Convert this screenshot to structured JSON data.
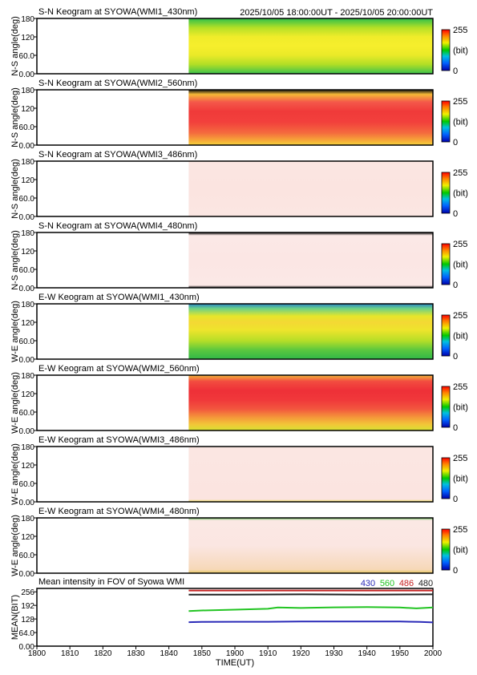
{
  "header": {
    "time_range": "2025/10/05 18:00:00UT - 2025/10/05 20:00:00UT"
  },
  "chart_data": [
    {
      "type": "heatmap",
      "title": "S-N Keogram at SYOWA(WMI1_430nm)",
      "ylabel": "N-S angle(deg)",
      "ylim": [
        0,
        180
      ],
      "yticks": [
        "0.00",
        "60.0",
        "120",
        "180"
      ],
      "colorbar": {
        "max": "255",
        "unit": "(bit)",
        "min": "0"
      },
      "data_start": "18:46",
      "rows": [
        {
          "angle": 180,
          "color": "#2fc04a"
        },
        {
          "angle": 150,
          "color": "#b4e026"
        },
        {
          "angle": 120,
          "color": "#f0ec2a"
        },
        {
          "angle": 90,
          "color": "#f6ee2c"
        },
        {
          "angle": 60,
          "color": "#eaea28"
        },
        {
          "angle": 30,
          "color": "#b0de26"
        },
        {
          "angle": 0,
          "color": "#3cc24c"
        }
      ]
    },
    {
      "type": "heatmap",
      "title": "S-N Keogram at SYOWA(WMI2_560nm)",
      "ylabel": "N-S angle(deg)",
      "ylim": [
        0,
        180
      ],
      "yticks": [
        "0.00",
        "60.0",
        "120",
        "180"
      ],
      "colorbar": {
        "max": "255",
        "unit": "(bit)",
        "min": "0"
      },
      "data_start": "18:46",
      "rows": [
        {
          "angle": 180,
          "color": "#111111"
        },
        {
          "angle": 165,
          "color": "#f6b836"
        },
        {
          "angle": 140,
          "color": "#f4584a"
        },
        {
          "angle": 110,
          "color": "#f03a3a"
        },
        {
          "angle": 75,
          "color": "#f2403c"
        },
        {
          "angle": 40,
          "color": "#f46a3e"
        },
        {
          "angle": 15,
          "color": "#f6a838"
        },
        {
          "angle": 0,
          "color": "#f4d23a"
        }
      ]
    },
    {
      "type": "heatmap",
      "title": "S-N Keogram at SYOWA(WMI3_486nm)",
      "ylabel": "N-S angle(deg)",
      "ylim": [
        0,
        180
      ],
      "yticks": [
        "0.00",
        "60.0",
        "120",
        "180"
      ],
      "colorbar": {
        "max": "255",
        "unit": "(bit)",
        "min": "0"
      },
      "data_start": "18:46",
      "rows": [
        {
          "angle": 180,
          "color": "#fbe6e2"
        },
        {
          "angle": 90,
          "color": "#fbe4e0"
        },
        {
          "angle": 0,
          "color": "#fbe6e2"
        }
      ]
    },
    {
      "type": "heatmap",
      "title": "S-N Keogram at SYOWA(WMI4_480nm)",
      "ylabel": "N-S angle(deg)",
      "ylim": [
        0,
        180
      ],
      "yticks": [
        "0.00",
        "60.0",
        "120",
        "180"
      ],
      "colorbar": {
        "max": "255",
        "unit": "(bit)",
        "min": "0"
      },
      "data_start": "18:46",
      "rows": [
        {
          "angle": 180,
          "color": "#111111"
        },
        {
          "angle": 170,
          "color": "#fbe8e6"
        },
        {
          "angle": 90,
          "color": "#fbe6e4"
        },
        {
          "angle": 8,
          "color": "#fbe8e6"
        },
        {
          "angle": 0,
          "color": "#111111"
        }
      ]
    },
    {
      "type": "heatmap",
      "title": "E-W Keogram at SYOWA(WMI1_430nm)",
      "ylabel": "W-E angle(deg)",
      "ylim": [
        0,
        180
      ],
      "yticks": [
        "0.00",
        "60.0",
        "120",
        "180"
      ],
      "colorbar": {
        "max": "255",
        "unit": "(bit)",
        "min": "0"
      },
      "data_start": "18:46",
      "rows": [
        {
          "angle": 180,
          "color": "#2a86c8"
        },
        {
          "angle": 165,
          "color": "#6ad088"
        },
        {
          "angle": 140,
          "color": "#e6e62a"
        },
        {
          "angle": 120,
          "color": "#f4d834"
        },
        {
          "angle": 95,
          "color": "#eee42c"
        },
        {
          "angle": 60,
          "color": "#b6de28"
        },
        {
          "angle": 30,
          "color": "#5cc83e"
        },
        {
          "angle": 0,
          "color": "#30b848"
        }
      ]
    },
    {
      "type": "heatmap",
      "title": "E-W Keogram at SYOWA(WMI2_560nm)",
      "ylabel": "W-E angle(deg)",
      "ylim": [
        0,
        180
      ],
      "yticks": [
        "0.00",
        "60.0",
        "120",
        "180"
      ],
      "colorbar": {
        "max": "255",
        "unit": "(bit)",
        "min": "0"
      },
      "data_start": "18:46",
      "rows": [
        {
          "angle": 180,
          "color": "#f2b63a"
        },
        {
          "angle": 160,
          "color": "#f24c40"
        },
        {
          "angle": 130,
          "color": "#ee3038"
        },
        {
          "angle": 100,
          "color": "#f0383a"
        },
        {
          "angle": 70,
          "color": "#f2563e"
        },
        {
          "angle": 45,
          "color": "#f4923a"
        },
        {
          "angle": 20,
          "color": "#f2c638"
        },
        {
          "angle": 0,
          "color": "#d6e232"
        }
      ]
    },
    {
      "type": "heatmap",
      "title": "E-W Keogram at SYOWA(WMI3_486nm)",
      "ylabel": "W-E angle(deg)",
      "ylim": [
        0,
        180
      ],
      "yticks": [
        "0.00",
        "60.0",
        "120",
        "180"
      ],
      "colorbar": {
        "max": "255",
        "unit": "(bit)",
        "min": "0"
      },
      "data_start": "18:46",
      "rows": [
        {
          "angle": 180,
          "color": "#fbe6e2"
        },
        {
          "angle": 8,
          "color": "#fbe4e0"
        },
        {
          "angle": 0,
          "color": "#e8d850"
        }
      ]
    },
    {
      "type": "heatmap",
      "title": "E-W Keogram at SYOWA(WMI4_480nm)",
      "ylabel": "W-E angle(deg)",
      "ylim": [
        0,
        180
      ],
      "yticks": [
        "0.00",
        "60.0",
        "120",
        "180"
      ],
      "colorbar": {
        "max": "255",
        "unit": "(bit)",
        "min": "0"
      },
      "data_start": "18:46",
      "rows": [
        {
          "angle": 180,
          "color": "#5ab850"
        },
        {
          "angle": 172,
          "color": "#fbe8e4"
        },
        {
          "angle": 90,
          "color": "#fbe6e2"
        },
        {
          "angle": 12,
          "color": "#f6d8b8"
        },
        {
          "angle": 0,
          "color": "#e8c860"
        }
      ]
    },
    {
      "type": "line",
      "title": "Mean intensity in FOV of Syowa WMI",
      "ylabel": "MEAN(BIT)",
      "xlabel": "TIME(UT)",
      "ylim": [
        0,
        272
      ],
      "yticks": [
        "0.00",
        "64.0",
        "128",
        "192",
        "256"
      ],
      "xlim": [
        0,
        120
      ],
      "xticks": [
        0,
        10,
        20,
        30,
        40,
        50,
        60,
        70,
        80,
        90,
        100,
        110,
        120
      ],
      "xtick_labels": [
        "1800",
        "1810",
        "1820",
        "1830",
        "1840",
        "1850",
        "1900",
        "1910",
        "1920",
        "1930",
        "1940",
        "1950",
        "2000"
      ],
      "series": [
        {
          "name": "430",
          "color": "#2a2ab8",
          "x": [
            46,
            50,
            60,
            70,
            80,
            90,
            100,
            110,
            116,
            120
          ],
          "y": [
            113,
            114,
            115,
            115,
            116,
            116,
            116,
            116,
            114,
            112
          ]
        },
        {
          "name": "560",
          "color": "#22c422",
          "x": [
            46,
            50,
            60,
            70,
            73,
            80,
            90,
            100,
            110,
            115,
            120
          ],
          "y": [
            165,
            168,
            172,
            176,
            182,
            180,
            183,
            184,
            182,
            178,
            182
          ]
        },
        {
          "name": "486",
          "color": "#c42222",
          "x": [
            46,
            60,
            80,
            100,
            120
          ],
          "y": [
            262,
            262,
            262,
            262,
            262
          ]
        },
        {
          "name": "480",
          "color": "#222222",
          "x": [
            46,
            60,
            80,
            100,
            120
          ],
          "y": [
            243,
            243,
            244,
            243,
            244
          ]
        }
      ]
    }
  ]
}
